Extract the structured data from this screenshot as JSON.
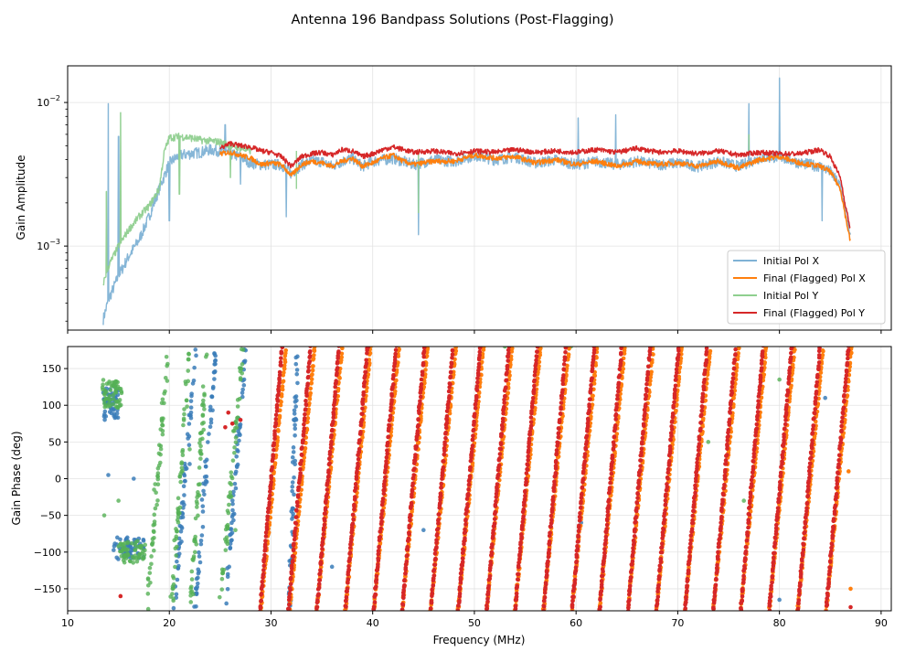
{
  "figure": {
    "suptitle": "Antenna 196 Bandpass Solutions (Post-Flagging)"
  },
  "chart_data": [
    {
      "type": "line",
      "name": "amplitude",
      "title": "",
      "xlabel": "",
      "ylabel": "Gain Amplitude",
      "yscale": "log",
      "xlim": [
        10,
        91
      ],
      "ylim": [
        0.00026,
        0.018
      ],
      "yticks": [
        {
          "value": 0.001,
          "base": "10",
          "exp": "−3"
        },
        {
          "value": 0.01,
          "base": "10",
          "exp": "−2"
        }
      ],
      "grid": true,
      "legend": {
        "placement": "lower-right",
        "entries": [
          {
            "label": "Initial Pol X",
            "color": "#7fb2d5"
          },
          {
            "label": "Final (Flagged) Pol X",
            "color": "#ff7f0e"
          },
          {
            "label": "Initial Pol Y",
            "color": "#8fcf8f"
          },
          {
            "label": "Final (Flagged) Pol Y",
            "color": "#d62728"
          }
        ]
      },
      "series": [
        {
          "name": "Initial Pol X",
          "color": "#7fb2d5",
          "x": [
            13.5,
            14,
            15,
            16,
            17,
            18,
            19,
            20,
            21,
            22,
            23,
            24,
            25,
            26,
            27,
            28,
            29,
            30,
            31,
            32,
            33,
            34,
            35,
            36,
            37,
            38,
            39,
            40,
            42,
            44,
            46,
            48,
            50,
            52,
            54,
            56,
            58,
            60,
            62,
            64,
            66,
            68,
            70,
            72,
            74,
            76,
            78,
            80,
            82,
            84,
            85,
            86,
            86.5,
            87
          ],
          "y": [
            0.00031,
            0.00042,
            0.00062,
            0.00085,
            0.0011,
            0.0016,
            0.0025,
            0.0038,
            0.0043,
            0.0044,
            0.0045,
            0.0047,
            0.0046,
            0.0044,
            0.0042,
            0.0038,
            0.0037,
            0.0037,
            0.0037,
            0.0032,
            0.0037,
            0.0039,
            0.0039,
            0.0036,
            0.0039,
            0.0041,
            0.0036,
            0.0039,
            0.0041,
            0.0037,
            0.004,
            0.0039,
            0.0043,
            0.004,
            0.0042,
            0.0038,
            0.004,
            0.0037,
            0.0039,
            0.0037,
            0.0039,
            0.0037,
            0.0038,
            0.0036,
            0.0039,
            0.0036,
            0.0041,
            0.0042,
            0.0038,
            0.0036,
            0.0033,
            0.0026,
            0.0017,
            0.0011
          ],
          "spikes": [
            [
              14,
              0.0098
            ],
            [
              15,
              0.0058
            ],
            [
              20,
              0.0015
            ],
            [
              25.5,
              0.007
            ],
            [
              27,
              0.0027
            ],
            [
              31.5,
              0.0016
            ],
            [
              44.5,
              0.0012
            ],
            [
              60.2,
              0.0078
            ],
            [
              63.9,
              0.0082
            ],
            [
              77,
              0.0098
            ],
            [
              80,
              0.0148
            ],
            [
              84.2,
              0.0015
            ]
          ]
        },
        {
          "name": "Final (Flagged) Pol X",
          "color": "#ff7f0e",
          "x": [
            25,
            26,
            27,
            28,
            29,
            30,
            31,
            32,
            33,
            34,
            35,
            36,
            37,
            38,
            39,
            40,
            41,
            42,
            43,
            44,
            46,
            48,
            50,
            52,
            54,
            56,
            58,
            60,
            62,
            64,
            66,
            68,
            70,
            72,
            74,
            76,
            78,
            80,
            82,
            84,
            85,
            86,
            86.5,
            87
          ],
          "y": [
            0.0044,
            0.0045,
            0.0043,
            0.0041,
            0.0037,
            0.0038,
            0.0037,
            0.0031,
            0.0037,
            0.0039,
            0.0038,
            0.0036,
            0.0039,
            0.0041,
            0.0036,
            0.0038,
            0.0041,
            0.0043,
            0.0039,
            0.0037,
            0.0039,
            0.0039,
            0.0043,
            0.0041,
            0.0042,
            0.0038,
            0.004,
            0.0037,
            0.0039,
            0.0036,
            0.0039,
            0.0037,
            0.0038,
            0.0036,
            0.0039,
            0.0035,
            0.004,
            0.0042,
            0.0038,
            0.0036,
            0.0033,
            0.0025,
            0.0016,
            0.00105
          ]
        },
        {
          "name": "Initial Pol Y",
          "color": "#8fcf8f",
          "x": [
            13.5,
            14,
            15,
            16,
            17,
            18,
            19,
            19.5,
            20,
            21,
            22,
            23,
            24,
            25,
            26,
            27,
            28
          ],
          "y": [
            0.00055,
            0.00072,
            0.001,
            0.0013,
            0.0016,
            0.0019,
            0.0025,
            0.0045,
            0.0057,
            0.0058,
            0.0057,
            0.0055,
            0.0054,
            0.0053,
            0.005,
            0.0048,
            0.0046
          ],
          "spikes": [
            [
              13.8,
              0.0024
            ],
            [
              15.2,
              0.0085
            ],
            [
              21,
              0.0023
            ],
            [
              26,
              0.003
            ],
            [
              32.5,
              0.0025
            ],
            [
              44.5,
              0.0017
            ],
            [
              77,
              0.006
            ]
          ]
        },
        {
          "name": "Final (Flagged) Pol Y",
          "color": "#d62728",
          "x": [
            25,
            26,
            27,
            28,
            29,
            30,
            31,
            32,
            33,
            34,
            35,
            36,
            37,
            38,
            39,
            40,
            41,
            42,
            43,
            44,
            46,
            48,
            50,
            52,
            54,
            56,
            58,
            60,
            62,
            64,
            66,
            68,
            70,
            72,
            74,
            76,
            78,
            80,
            82,
            84,
            85,
            86,
            86.5,
            87
          ],
          "y": [
            0.0048,
            0.0052,
            0.005,
            0.0049,
            0.0046,
            0.0045,
            0.0042,
            0.0036,
            0.0042,
            0.0044,
            0.0045,
            0.0043,
            0.0047,
            0.0046,
            0.0042,
            0.0044,
            0.0047,
            0.0049,
            0.0047,
            0.0045,
            0.0046,
            0.0044,
            0.0046,
            0.0045,
            0.0047,
            0.0045,
            0.0046,
            0.0045,
            0.0047,
            0.0045,
            0.0048,
            0.0045,
            0.0046,
            0.0044,
            0.0046,
            0.0043,
            0.0045,
            0.0044,
            0.0044,
            0.0047,
            0.0042,
            0.003,
            0.0019,
            0.0013
          ]
        }
      ]
    },
    {
      "type": "scatter",
      "name": "phase",
      "title": "",
      "xlabel": "Frequency (MHz)",
      "ylabel": "Gain Phase (deg)",
      "xlim": [
        10,
        91
      ],
      "ylim": [
        -180,
        180
      ],
      "xticks": [
        10,
        20,
        30,
        40,
        50,
        60,
        70,
        80,
        90
      ],
      "yticks": [
        -150,
        -100,
        -50,
        0,
        50,
        100,
        150
      ],
      "grid": true,
      "series": [
        {
          "name": "Initial Pol X",
          "color": "#3a7db8",
          "description": "phase wraps; early clusters",
          "clusters": [
            {
              "x": [
                13.5,
                15.0
              ],
              "y": [
                80,
                130
              ]
            },
            {
              "x": [
                14.5,
                17.5
              ],
              "y": [
                -110,
                -80
              ]
            }
          ],
          "ramps": [
            [
              20.5,
              22.6
            ],
            [
              22.5,
              24.6
            ],
            [
              25.5,
              27.5
            ],
            [
              31.8,
              32.6
            ]
          ],
          "scatter": [
            [
              14,
              5
            ],
            [
              16.5,
              0
            ],
            [
              22,
              20
            ],
            [
              36,
              -120
            ],
            [
              45,
              -70
            ],
            [
              60.5,
              -60
            ],
            [
              64,
              85
            ],
            [
              80,
              -165
            ],
            [
              84.5,
              110
            ]
          ]
        },
        {
          "name": "Final (Flagged) Pol X",
          "color": "#ff7f0e",
          "wrap_starts": [
            29.0,
            31.8,
            34.5,
            37.3,
            40.1,
            42.9,
            45.7,
            48.4,
            51.2,
            54.0,
            56.8,
            59.6,
            62.3,
            65.1,
            67.9,
            70.7,
            73.5,
            76.2,
            79.0,
            81.8,
            84.6
          ],
          "wrap_width": 2.5,
          "tail": [
            [
              86.8,
              10
            ],
            [
              87,
              -150
            ]
          ]
        },
        {
          "name": "Initial Pol Y",
          "color": "#55b055",
          "clusters": [
            {
              "x": [
                13.4,
                15.3
              ],
              "y": [
                95,
                135
              ]
            },
            {
              "x": [
                15.0,
                17.8
              ],
              "y": [
                -115,
                -85
              ]
            }
          ],
          "ramps": [
            [
              17.8,
              19.9
            ],
            [
              20.2,
              22.0
            ],
            [
              22.1,
              23.7
            ],
            [
              25.0,
              27.2
            ]
          ],
          "scatter": [
            [
              13.6,
              -50
            ],
            [
              15,
              -30
            ],
            [
              18.5,
              -15
            ],
            [
              22,
              40
            ],
            [
              26.5,
              -70
            ],
            [
              27,
              135
            ],
            [
              53,
              180
            ],
            [
              59.5,
              180
            ],
            [
              73,
              50
            ],
            [
              76.5,
              -30
            ],
            [
              80,
              135
            ]
          ]
        },
        {
          "name": "Final (Flagged) Pol Y",
          "color": "#d62728",
          "wrap_starts": [
            28.9,
            31.7,
            34.5,
            37.3,
            40.1,
            42.9,
            45.7,
            48.4,
            51.2,
            54.0,
            56.8,
            59.6,
            62.3,
            65.1,
            67.9,
            70.7,
            73.5,
            76.2,
            79.0,
            81.8,
            84.6
          ],
          "wrap_width": 2.2,
          "tail": [
            [
              86.8,
              175
            ],
            [
              87,
              -175
            ]
          ],
          "scatter": [
            [
              25.5,
              70
            ],
            [
              26.2,
              75
            ],
            [
              27,
              80
            ],
            [
              25.8,
              90
            ],
            [
              15.2,
              -160
            ]
          ]
        }
      ]
    }
  ]
}
